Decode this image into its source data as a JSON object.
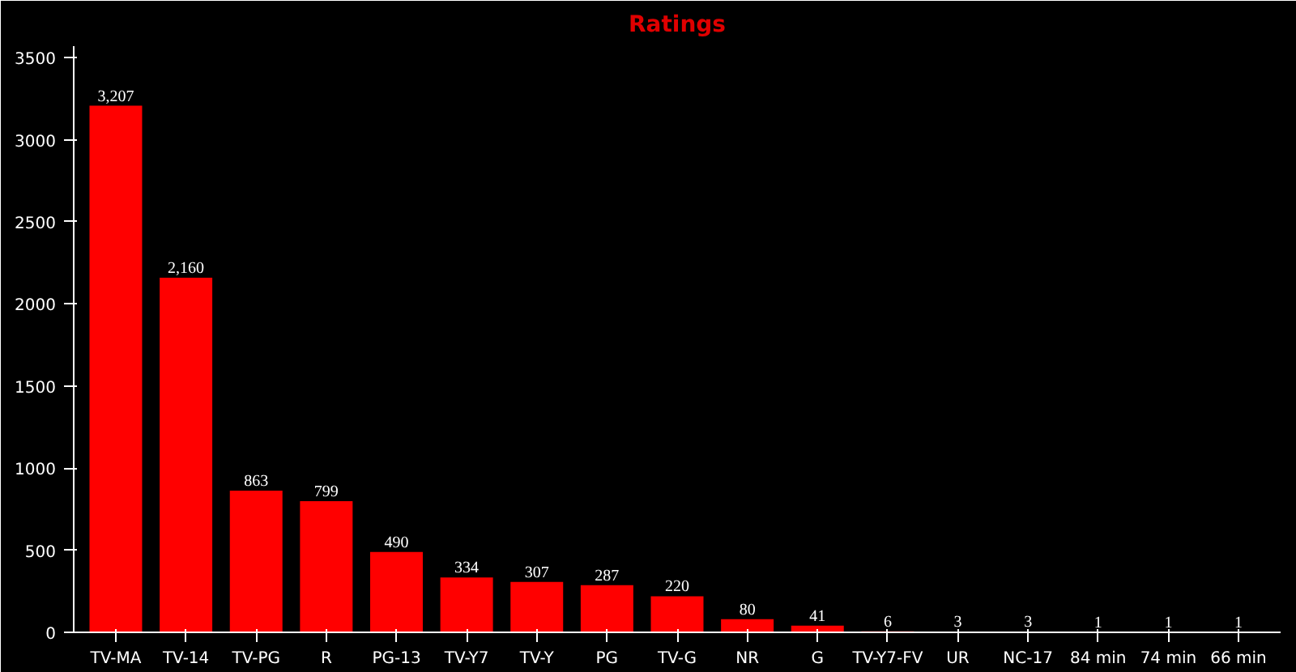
{
  "chart_data": {
    "type": "bar",
    "title": "Ratings",
    "categories": [
      "TV-MA",
      "TV-14",
      "TV-PG",
      "R",
      "PG-13",
      "TV-Y7",
      "TV-Y",
      "PG",
      "TV-G",
      "NR",
      "G",
      "TV-Y7-FV",
      "UR",
      "NC-17",
      "84 min",
      "74 min",
      "66 min"
    ],
    "values": [
      3207,
      2160,
      863,
      799,
      490,
      334,
      307,
      287,
      220,
      80,
      41,
      6,
      3,
      3,
      1,
      1,
      1
    ],
    "value_labels": [
      "3,207",
      "2,160",
      "863",
      "799",
      "490",
      "334",
      "307",
      "287",
      "220",
      "80",
      "41",
      "6",
      "3",
      "3",
      "1",
      "1",
      "1"
    ],
    "color": "#ff0000",
    "ylim": [
      0,
      3570
    ],
    "yticks": [
      0,
      500,
      1000,
      1500,
      2000,
      2500,
      3000,
      3500
    ],
    "grid": false,
    "legend": false
  }
}
